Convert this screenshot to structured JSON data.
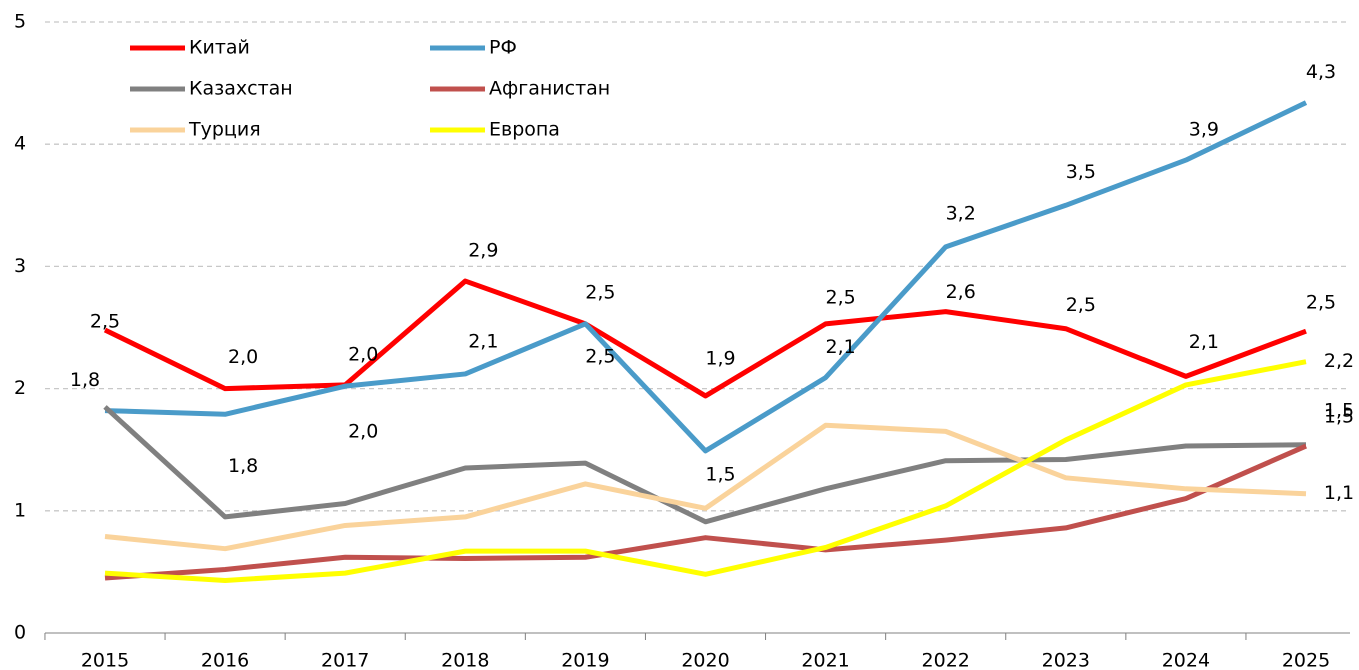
{
  "chart_data": {
    "type": "line",
    "categories": [
      "2015",
      "2016",
      "2017",
      "2018",
      "2019",
      "2020",
      "2021",
      "2022",
      "2023",
      "2024",
      "2025"
    ],
    "series": [
      {
        "name": "Китай",
        "color": "#ff0000",
        "values": [
          2.48,
          2.0,
          2.03,
          2.88,
          2.53,
          1.94,
          2.53,
          2.63,
          2.49,
          2.1,
          2.47
        ],
        "value_labels": [
          "2,5",
          "2,0",
          "2,0",
          "2,9",
          "2,5",
          "1,9",
          "2,5",
          "2,6",
          "2,5",
          "2,1",
          "2,5"
        ]
      },
      {
        "name": "РФ",
        "color": "#4a9bc9",
        "values": [
          1.82,
          1.79,
          2.02,
          2.12,
          2.53,
          1.49,
          2.09,
          3.16,
          3.5,
          3.87,
          4.34
        ],
        "value_labels": [
          "1,8",
          "1,8",
          "2,0",
          "2,1",
          "2,5",
          "1,5",
          "2,1",
          "3,2",
          "3,5",
          "3,9",
          "4,3"
        ]
      },
      {
        "name": "Казахстан",
        "color": "#808080",
        "values": [
          1.85,
          0.95,
          1.06,
          1.35,
          1.39,
          0.91,
          1.18,
          1.41,
          1.42,
          1.53,
          1.54
        ],
        "value_labels": [
          null,
          null,
          null,
          null,
          null,
          null,
          null,
          null,
          null,
          null,
          "1,5"
        ]
      },
      {
        "name": "Афганистан",
        "color": "#c0504d",
        "values": [
          0.45,
          0.52,
          0.62,
          0.61,
          0.62,
          0.78,
          0.68,
          0.76,
          0.86,
          1.1,
          1.53
        ],
        "value_labels": [
          null,
          null,
          null,
          null,
          null,
          null,
          null,
          null,
          null,
          null,
          "1,5"
        ]
      },
      {
        "name": "Турция",
        "color": "#fad39b",
        "values": [
          0.79,
          0.69,
          0.88,
          0.95,
          1.22,
          1.02,
          1.7,
          1.65,
          1.27,
          1.18,
          1.14
        ],
        "value_labels": [
          null,
          null,
          null,
          null,
          null,
          null,
          null,
          null,
          null,
          null,
          "1,1"
        ]
      },
      {
        "name": "Европа",
        "color": "#ffff00",
        "values": [
          0.49,
          0.43,
          0.49,
          0.67,
          0.67,
          0.48,
          0.7,
          1.04,
          1.58,
          2.03,
          2.22
        ],
        "value_labels": [
          null,
          null,
          null,
          null,
          null,
          null,
          null,
          null,
          null,
          null,
          "2,2"
        ]
      }
    ],
    "ylim": [
      0,
      5
    ],
    "yticks": [
      0,
      1,
      2,
      3,
      4,
      5
    ],
    "grid": true
  }
}
